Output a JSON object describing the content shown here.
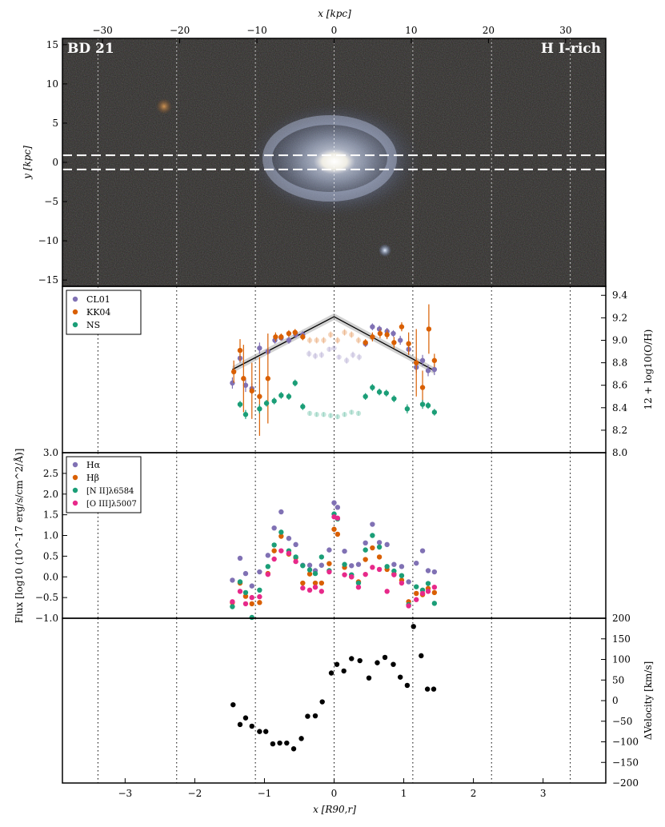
{
  "colors": {
    "cl01": "#8071b4",
    "kk04": "#d95f02",
    "ns": "#1b9e77",
    "halpha": "#8071b4",
    "hbeta": "#d95f02",
    "nii": "#1b9e77",
    "oiii": "#e7298a",
    "velocity": "#000000",
    "image_bg": "#2c2a26"
  },
  "chart_data": [
    {
      "type": "image",
      "name": "galaxy-image",
      "label_left": "BD 21",
      "label_right": "H I-rich",
      "top_axis_label": "x [kpc]",
      "top_ticks": [
        -30,
        -20,
        -10,
        0,
        10,
        20,
        30
      ],
      "ylabel": "y [kpc]",
      "yticks": [
        -15,
        -10,
        -5,
        0,
        5,
        10,
        15
      ],
      "xlim_kpc": [
        -35.2,
        35.2
      ],
      "ylim_kpc": [
        -15.8,
        15.8
      ],
      "slit_y_kpc": [
        0.9,
        -0.9
      ]
    },
    {
      "type": "scatter",
      "name": "metallicity",
      "ylabel": "12 + log10(O/H)",
      "ylim": [
        8.0,
        9.48
      ],
      "yticks": [
        8.0,
        8.2,
        8.4,
        8.6,
        8.8,
        9.0,
        9.2,
        9.4
      ],
      "series": [
        {
          "name": "CL01",
          "color_key": "cl01",
          "x": [
            -1.46,
            -1.35,
            -1.27,
            -1.18,
            -1.07,
            -0.95,
            -0.85,
            -0.76,
            -0.65,
            -0.55,
            -0.45,
            -0.36,
            -0.27,
            -0.18,
            -0.07,
            0.0,
            0.07,
            0.18,
            0.27,
            0.36,
            0.45,
            0.55,
            0.65,
            0.76,
            0.85,
            0.95,
            1.07,
            1.18,
            1.27,
            1.35,
            1.44
          ],
          "y": [
            8.62,
            8.84,
            8.6,
            8.57,
            8.93,
            8.9,
            9.0,
            9.02,
            9.0,
            9.05,
            9.05,
            8.88,
            8.86,
            8.87,
            8.92,
            8.93,
            8.85,
            8.82,
            8.87,
            8.85,
            8.97,
            9.12,
            9.1,
            9.08,
            9.06,
            9.0,
            8.92,
            8.76,
            8.82,
            8.73,
            8.74
          ],
          "yerr": [
            0.05,
            0.04,
            0.06,
            0.05,
            0.05,
            0.03,
            0.03,
            0.02,
            0.03,
            0.03,
            0.03,
            0.03,
            0.03,
            0.03,
            0.02,
            0.02,
            0.02,
            0.03,
            0.03,
            0.03,
            0.03,
            0.03,
            0.03,
            0.03,
            0.03,
            0.04,
            0.05,
            0.05,
            0.05,
            0.05,
            0.05
          ],
          "faded": [
            false,
            false,
            false,
            false,
            false,
            false,
            false,
            false,
            false,
            false,
            false,
            true,
            true,
            true,
            true,
            true,
            true,
            true,
            true,
            true,
            false,
            false,
            false,
            false,
            false,
            false,
            false,
            false,
            false,
            false,
            false
          ]
        },
        {
          "name": "KK04",
          "color_key": "kk04",
          "x": [
            -1.44,
            -1.35,
            -1.3,
            -1.18,
            -1.07,
            -0.95,
            -0.84,
            -0.76,
            -0.65,
            -0.56,
            -0.45,
            -0.35,
            -0.25,
            -0.15,
            -0.05,
            0.05,
            0.15,
            0.25,
            0.35,
            0.45,
            0.55,
            0.66,
            0.76,
            0.86,
            0.97,
            1.07,
            1.18,
            1.27,
            1.36,
            1.44
          ],
          "y": [
            8.72,
            8.91,
            8.66,
            8.55,
            8.5,
            8.66,
            9.03,
            9.03,
            9.06,
            9.07,
            9.03,
            9.0,
            9.0,
            9.0,
            9.05,
            9.0,
            9.07,
            9.05,
            9.0,
            8.98,
            9.03,
            9.06,
            9.05,
            8.98,
            9.12,
            8.97,
            8.8,
            8.58,
            9.1,
            8.82
          ],
          "yerr": [
            0.1,
            0.1,
            0.3,
            0.25,
            0.35,
            0.4,
            0.04,
            0.03,
            0.03,
            0.03,
            0.03,
            0.03,
            0.03,
            0.03,
            0.03,
            0.03,
            0.03,
            0.03,
            0.03,
            0.03,
            0.04,
            0.04,
            0.04,
            0.05,
            0.04,
            0.1,
            0.3,
            0.15,
            0.22,
            0.06
          ],
          "faded": [
            false,
            false,
            false,
            false,
            false,
            false,
            false,
            false,
            false,
            false,
            false,
            true,
            true,
            true,
            true,
            true,
            true,
            true,
            true,
            false,
            false,
            false,
            false,
            false,
            false,
            false,
            false,
            false,
            false,
            false
          ]
        },
        {
          "name": "NS",
          "color_key": "ns",
          "x": [
            -1.35,
            -1.27,
            -1.07,
            -0.97,
            -0.86,
            -0.76,
            -0.65,
            -0.56,
            -0.45,
            -0.35,
            -0.25,
            -0.15,
            -0.05,
            0.05,
            0.15,
            0.25,
            0.35,
            0.45,
            0.55,
            0.65,
            0.75,
            0.86,
            1.05,
            1.27,
            1.35,
            1.44
          ],
          "y": [
            8.43,
            8.34,
            8.39,
            8.44,
            8.46,
            8.51,
            8.5,
            8.62,
            8.41,
            8.35,
            8.34,
            8.34,
            8.33,
            8.32,
            8.34,
            8.36,
            8.35,
            8.5,
            8.58,
            8.54,
            8.53,
            8.48,
            8.39,
            8.43,
            8.42,
            8.36
          ],
          "yerr": [
            0.03,
            0.04,
            0.04,
            0.03,
            0.03,
            0.03,
            0.03,
            0.03,
            0.03,
            0.02,
            0.02,
            0.02,
            0.02,
            0.02,
            0.02,
            0.02,
            0.02,
            0.03,
            0.03,
            0.03,
            0.03,
            0.03,
            0.04,
            0.04,
            0.03,
            0.03
          ],
          "faded": [
            false,
            false,
            false,
            false,
            false,
            false,
            false,
            false,
            false,
            true,
            true,
            true,
            true,
            true,
            true,
            true,
            true,
            false,
            false,
            false,
            false,
            false,
            false,
            false,
            false,
            false
          ]
        }
      ],
      "fit": {
        "x": [
          -1.46,
          0.0,
          1.44
        ],
        "y": [
          8.74,
          9.21,
          8.73
        ]
      }
    },
    {
      "type": "scatter",
      "name": "flux",
      "ylabel": "Flux [log10 (10^-17 erg/s/cm^2/Å)]",
      "ylim": [
        -1.0,
        3.0
      ],
      "yticks": [
        -1.0,
        -0.5,
        0.0,
        0.5,
        1.0,
        1.5,
        2.0,
        2.5,
        3.0
      ],
      "series": [
        {
          "name": "Hα",
          "color_key": "halpha",
          "x": [
            -1.46,
            -1.35,
            -1.27,
            -1.18,
            -1.07,
            -0.95,
            -0.86,
            -0.76,
            -0.65,
            -0.55,
            -0.45,
            -0.35,
            -0.27,
            -0.18,
            -0.07,
            0.0,
            0.05,
            0.15,
            0.25,
            0.35,
            0.45,
            0.55,
            0.65,
            0.76,
            0.86,
            0.97,
            1.07,
            1.18,
            1.27,
            1.35,
            1.44
          ],
          "y": [
            -0.08,
            0.45,
            0.08,
            -0.22,
            0.12,
            0.52,
            1.18,
            1.57,
            0.93,
            0.78,
            0.28,
            0.28,
            0.15,
            0.28,
            0.65,
            1.79,
            1.68,
            0.62,
            0.27,
            0.3,
            0.82,
            1.27,
            0.83,
            0.78,
            0.3,
            0.25,
            -0.12,
            0.33,
            0.63,
            0.15,
            0.12
          ]
        },
        {
          "name": "Hβ",
          "color_key": "hbeta",
          "x": [
            -1.46,
            -1.35,
            -1.27,
            -1.18,
            -1.07,
            -0.95,
            -0.86,
            -0.76,
            -0.65,
            -0.55,
            -0.45,
            -0.35,
            -0.27,
            -0.18,
            -0.07,
            0.0,
            0.05,
            0.15,
            0.25,
            0.35,
            0.45,
            0.55,
            0.65,
            0.76,
            0.86,
            0.97,
            1.07,
            1.18,
            1.27,
            1.35,
            1.44
          ],
          "y": [
            -0.62,
            -0.15,
            -0.47,
            -0.65,
            -0.62,
            0.08,
            0.63,
            0.98,
            0.55,
            0.46,
            -0.15,
            0.07,
            -0.15,
            -0.15,
            0.32,
            1.15,
            1.03,
            0.23,
            0.0,
            -0.12,
            0.42,
            0.7,
            0.48,
            0.18,
            0.07,
            -0.08,
            -0.6,
            -0.4,
            -0.43,
            -0.28,
            -0.38
          ]
        },
        {
          "name": "[N II]λ6584",
          "color_key": "nii",
          "x": [
            -1.46,
            -1.35,
            -1.27,
            -1.18,
            -1.07,
            -0.95,
            -0.86,
            -0.76,
            -0.65,
            -0.55,
            -0.45,
            -0.35,
            -0.27,
            -0.18,
            -0.07,
            0.0,
            0.05,
            0.15,
            0.25,
            0.35,
            0.45,
            0.55,
            0.65,
            0.76,
            0.86,
            0.97,
            1.07,
            1.18,
            1.27,
            1.35,
            1.44
          ],
          "y": [
            -0.72,
            -0.12,
            -0.38,
            -0.98,
            -0.32,
            0.25,
            0.77,
            1.08,
            0.63,
            0.48,
            0.27,
            0.17,
            0.08,
            0.48,
            0.15,
            1.52,
            1.4,
            0.3,
            0.05,
            -0.15,
            0.65,
            1.0,
            0.72,
            0.25,
            0.14,
            0.03,
            -0.67,
            -0.24,
            -0.32,
            -0.16,
            -0.64
          ]
        },
        {
          "name": "[O III]λ5007",
          "color_key": "oiii",
          "x": [
            -1.46,
            -1.35,
            -1.27,
            -1.18,
            -1.07,
            -0.95,
            -0.86,
            -0.76,
            -0.65,
            -0.55,
            -0.45,
            -0.35,
            -0.27,
            -0.18,
            -0.07,
            0.0,
            0.05,
            0.15,
            0.25,
            0.35,
            0.45,
            0.55,
            0.65,
            0.76,
            0.86,
            0.97,
            1.07,
            1.18,
            1.27,
            1.35,
            1.44
          ],
          "y": [
            -0.6,
            -0.35,
            -0.65,
            -0.5,
            -0.48,
            0.06,
            0.43,
            0.63,
            0.57,
            0.37,
            -0.27,
            -0.32,
            -0.25,
            -0.35,
            0.12,
            1.45,
            1.42,
            0.05,
            0.0,
            -0.25,
            0.06,
            0.23,
            0.18,
            -0.35,
            0.05,
            -0.15,
            -0.7,
            -0.55,
            -0.4,
            -0.35,
            -0.25
          ]
        }
      ]
    },
    {
      "type": "scatter",
      "name": "velocity",
      "ylabel": "ΔVelocity [km/s]",
      "xlabel": "x [R90,r]",
      "ylim": [
        -200,
        200
      ],
      "yticks": [
        -200,
        -150,
        -100,
        -50,
        0,
        50,
        100,
        150,
        200
      ],
      "xlim": [
        -3.9,
        3.9
      ],
      "xticks": [
        -3,
        -2,
        -1,
        0,
        1,
        2,
        3
      ],
      "vlines": [
        -3.39,
        -2.26,
        -1.13,
        0.0,
        1.13,
        2.26,
        3.39
      ],
      "series": [
        {
          "name": "",
          "color_key": "velocity",
          "x": [
            -1.45,
            -1.35,
            -1.27,
            -1.18,
            -1.07,
            -0.98,
            -0.88,
            -0.78,
            -0.68,
            -0.58,
            -0.47,
            -0.38,
            -0.27,
            -0.17,
            -0.04,
            0.04,
            0.14,
            0.25,
            0.37,
            0.5,
            0.62,
            0.73,
            0.85,
            0.95,
            1.05,
            1.14,
            1.25,
            1.34,
            1.43
          ],
          "y": [
            -10,
            -58,
            -42,
            -62,
            -75,
            -75,
            -105,
            -103,
            -103,
            -117,
            -92,
            -38,
            -37,
            -3,
            67,
            88,
            72,
            102,
            97,
            55,
            92,
            105,
            88,
            57,
            37,
            180,
            109,
            28,
            28
          ]
        }
      ]
    }
  ]
}
